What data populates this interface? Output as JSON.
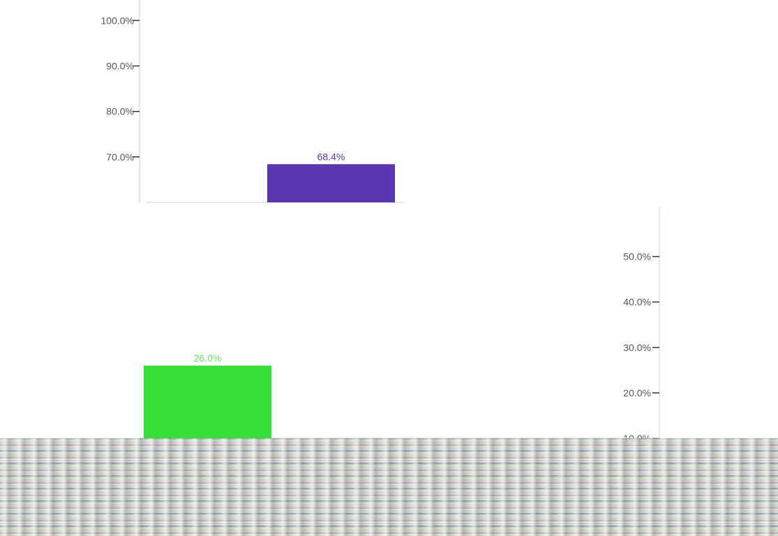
{
  "chart_data": [
    {
      "type": "bar",
      "ylim": [
        60,
        100
      ],
      "y_ticks": [
        "70.0%",
        "80.0%",
        "90.0%",
        "100.0%"
      ],
      "values": [
        68.4
      ],
      "data_labels": [
        "68.4%"
      ],
      "colors": [
        "#5b35b2"
      ],
      "grid": false
    },
    {
      "type": "bar",
      "ylim": [
        10,
        60
      ],
      "y_ticks": [
        "10.0%",
        "20.0%",
        "30.0%",
        "40.0%",
        "50.0%"
      ],
      "values": [
        26.0
      ],
      "data_labels": [
        "26.0%"
      ],
      "colors": [
        "#35e03a"
      ],
      "label_color": "#5ce85f",
      "grid": false
    }
  ]
}
